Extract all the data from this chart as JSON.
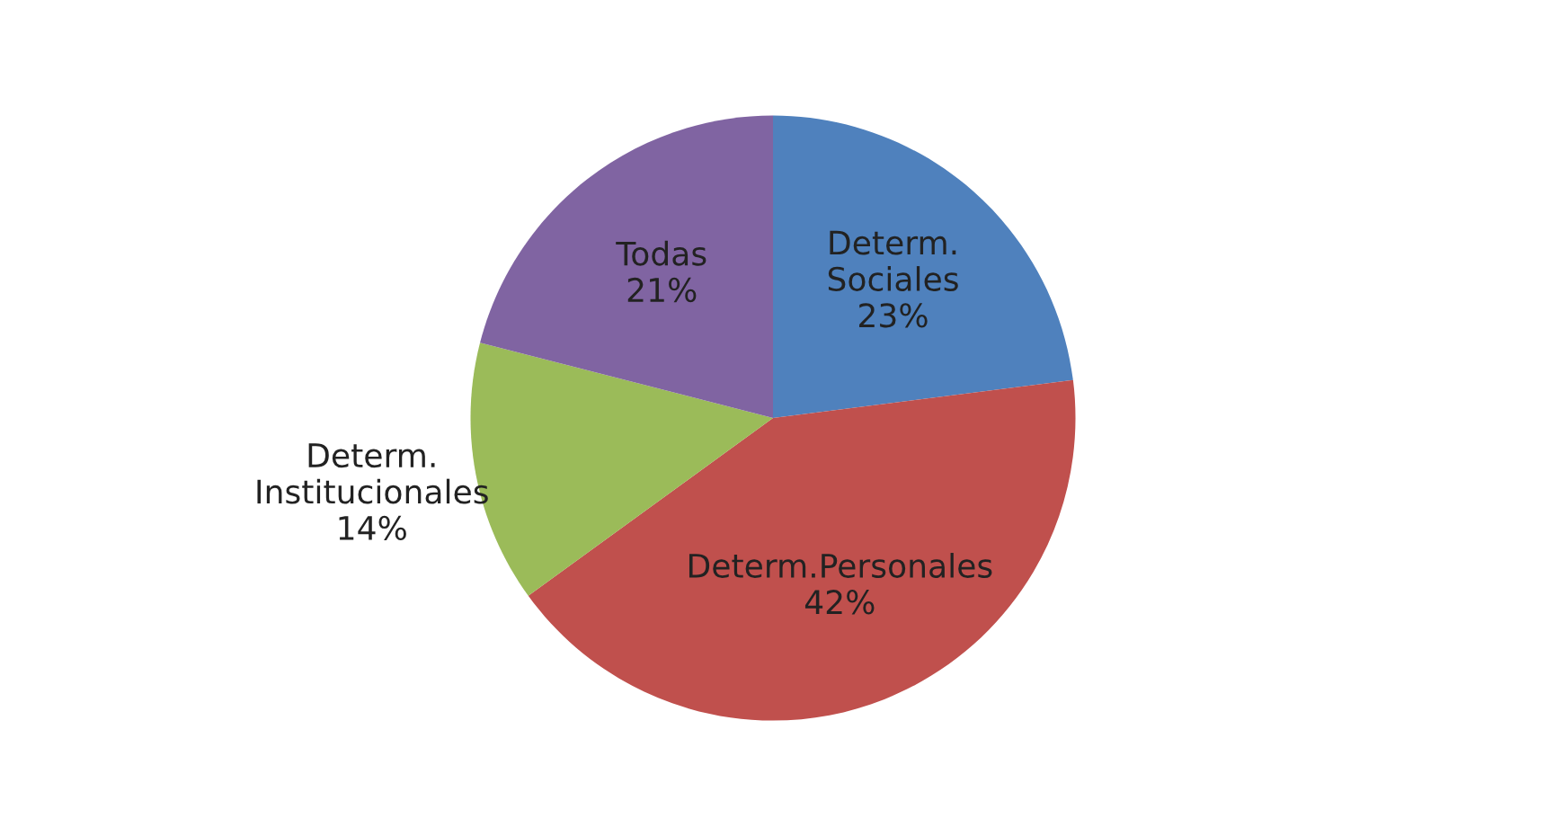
{
  "chart_data": {
    "type": "pie",
    "categories": [
      "Determ. Sociales",
      "Determ.Personales",
      "Determ. Institucionales",
      "Todas"
    ],
    "values": [
      23,
      42,
      14,
      21
    ],
    "value_labels": [
      "23%",
      "42%",
      "14%",
      "21%"
    ],
    "colors": [
      "#4f81bd",
      "#c0504d",
      "#9bbb59",
      "#8064a2"
    ],
    "legend": false
  }
}
